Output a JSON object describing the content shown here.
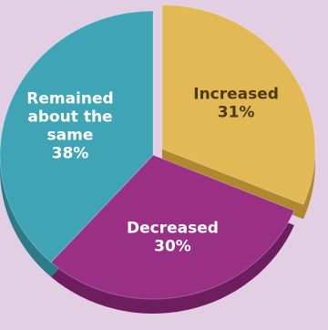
{
  "background_color": "#e3cfe3",
  "chart_data": {
    "type": "pie",
    "slices": [
      {
        "name": "Increased",
        "value": 31,
        "value_label": "31%",
        "label_lines": [
          "Increased",
          "31%"
        ],
        "color": "#e3b956",
        "side_color": "#b0892f",
        "label_color": "#4b3a14",
        "exploded": true
      },
      {
        "name": "Decreased",
        "value": 30,
        "value_label": "30%",
        "label_lines": [
          "Decreased",
          "30%"
        ],
        "color": "#9a2f86",
        "side_color": "#6e1d5f",
        "label_color": "#ffffff",
        "exploded": false
      },
      {
        "name": "Remained about the same",
        "value": 38,
        "value_label": "38%",
        "label_lines": [
          "Remained",
          "about the",
          "same",
          "38%"
        ],
        "color": "#3fa4b5",
        "side_color": "#2b7b88",
        "label_color": "#ffffff",
        "exploded": false
      }
    ]
  }
}
